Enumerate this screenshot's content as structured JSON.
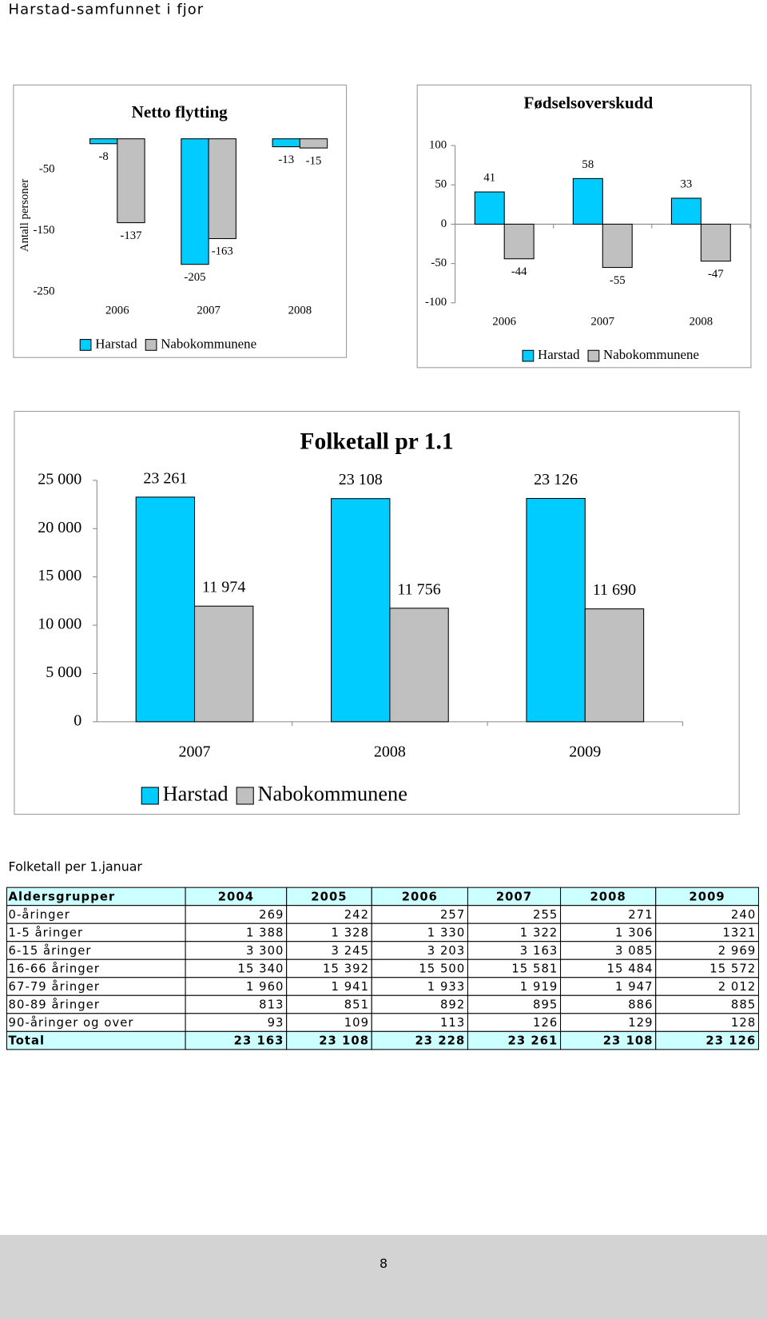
{
  "page_title": "Harstad-samfunnet i fjor",
  "chart_data": [
    {
      "type": "bar",
      "title": "Netto flytting",
      "y_label": "Antall personer",
      "categories": [
        "2006",
        "2007",
        "2008"
      ],
      "series": [
        {
          "name": "Harstad",
          "color": "#00ccff",
          "values": [
            -8,
            -205,
            -13
          ]
        },
        {
          "name": "Nabokommunene",
          "color": "#c0c0c0",
          "values": [
            -137,
            -163,
            -15
          ]
        }
      ],
      "ylim": [
        -250,
        0
      ],
      "yticks": [
        -50,
        -150,
        -250
      ]
    },
    {
      "type": "bar",
      "title": "Fødselsoverskudd",
      "categories": [
        "2006",
        "2007",
        "2008"
      ],
      "series": [
        {
          "name": "Harstad",
          "color": "#00ccff",
          "values": [
            41,
            58,
            33
          ]
        },
        {
          "name": "Nabokommunene",
          "color": "#c0c0c0",
          "values": [
            -44,
            -55,
            -47
          ]
        }
      ],
      "ylim": [
        -100,
        100
      ],
      "yticks": [
        100,
        50,
        0,
        -50,
        -100
      ]
    },
    {
      "type": "bar",
      "title": "Folketall pr 1.1",
      "categories": [
        "2007",
        "2008",
        "2009"
      ],
      "series": [
        {
          "name": "Harstad",
          "color": "#00ccff",
          "values": [
            23261,
            23108,
            23126
          ],
          "value_labels": [
            "23 261",
            "23 108",
            "23 126"
          ]
        },
        {
          "name": "Nabokommunene",
          "color": "#c0c0c0",
          "values": [
            11974,
            11756,
            11690
          ],
          "value_labels": [
            "11 974",
            "11 756",
            "11 690"
          ]
        }
      ],
      "ylim": [
        0,
        25000
      ],
      "yticks": [
        {
          "value": 25000,
          "label": "25 000"
        },
        {
          "value": 20000,
          "label": "20 000"
        },
        {
          "value": 15000,
          "label": "15 000"
        },
        {
          "value": 10000,
          "label": "10 000"
        },
        {
          "value": 5000,
          "label": "5 000"
        },
        0
      ]
    }
  ],
  "table_caption": "Folketall per 1.januar",
  "table": {
    "header": [
      "Aldersgrupper",
      "2004",
      "2005",
      "2006",
      "2007",
      "2008",
      "2009"
    ],
    "rows": [
      [
        "0-åringer",
        "269",
        "242",
        "257",
        "255",
        "271",
        "240"
      ],
      [
        "1-5 åringer",
        "1 388",
        "1 328",
        "1 330",
        "1 322",
        "1 306",
        "1321"
      ],
      [
        "6-15 åringer",
        "3 300",
        "3 245",
        "3 203",
        "3 163",
        "3 085",
        "2 969"
      ],
      [
        "16-66 åringer",
        "15 340",
        "15 392",
        "15 500",
        "15 581",
        "15 484",
        "15 572"
      ],
      [
        "67-79 åringer",
        "1 960",
        "1 941",
        "1 933",
        "1 919",
        "1 947",
        "2 012"
      ],
      [
        "80-89 åringer",
        "813",
        "851",
        "892",
        "895",
        "886",
        "885"
      ],
      [
        "90-åringer og over",
        "93",
        "109",
        "113",
        "126",
        "129",
        "128"
      ],
      [
        "Total",
        "23 163",
        "23 108",
        "23 228",
        "23 261",
        "23 108",
        "23 126"
      ]
    ]
  },
  "page_number": "8"
}
